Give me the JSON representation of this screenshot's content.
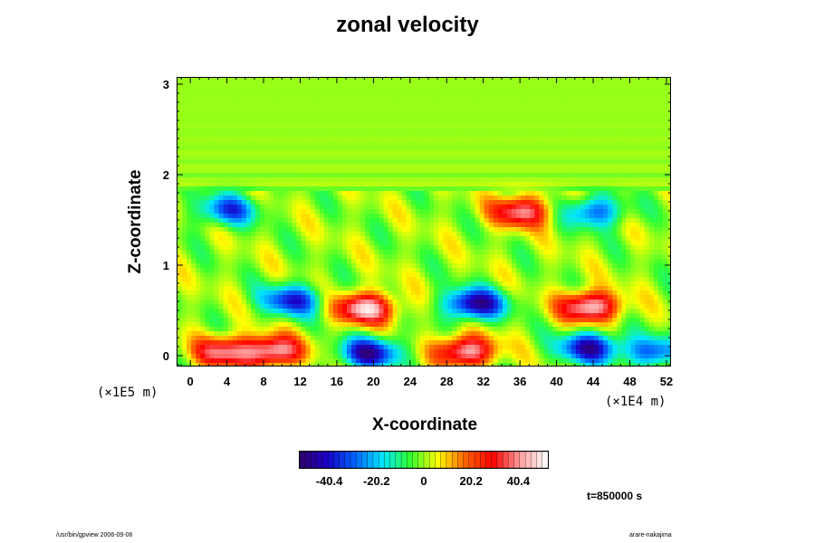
{
  "colors": {
    "background": "#ffffff",
    "colormap": [
      "#30006a",
      "#1a00c8",
      "#0064ff",
      "#00e6ff",
      "#30ff30",
      "#ffff00",
      "#ff6400",
      "#ff0000",
      "#ffa0a0",
      "#ffffff"
    ]
  },
  "chart_data": {
    "type": "heatmap",
    "title": "zonal velocity",
    "xlabel": "X-coordinate",
    "ylabel": "Z-coordinate",
    "x_scale_note": "(×1E4 m)",
    "y_scale_note": "(×1E5 m)",
    "xlim": [
      -1.5,
      52.5
    ],
    "ylim": [
      -0.12,
      3.08
    ],
    "x_ticks": [
      0,
      4,
      8,
      12,
      16,
      20,
      24,
      28,
      32,
      36,
      40,
      44,
      48,
      52
    ],
    "y_ticks": [
      0,
      1,
      2,
      3
    ],
    "colorbar": {
      "vmin": -53,
      "vmax": 53,
      "ticks": [
        -40.4,
        -20.2,
        0,
        20.2,
        40.4
      ],
      "tick_labels": [
        "-40.4",
        "-20.2",
        "0",
        "20.2",
        "40.4"
      ],
      "levels": 44
    },
    "features": [
      {
        "x": 3.5,
        "z": 0.05,
        "value": 38
      },
      {
        "x": 9.0,
        "z": 0.06,
        "value": 45
      },
      {
        "x": 19.5,
        "z": 0.04,
        "value": -45
      },
      {
        "x": 30.0,
        "z": 0.06,
        "value": 45
      },
      {
        "x": 43.5,
        "z": 0.1,
        "value": -45
      },
      {
        "x": 50.5,
        "z": 0.05,
        "value": -30
      },
      {
        "x": 19.0,
        "z": 0.53,
        "value": 48
      },
      {
        "x": 31.0,
        "z": 0.58,
        "value": -48
      },
      {
        "x": 43.5,
        "z": 0.55,
        "value": 48
      },
      {
        "x": 11.0,
        "z": 0.62,
        "value": -38
      },
      {
        "x": 4.0,
        "z": 1.62,
        "value": -32
      },
      {
        "x": 36.0,
        "z": 1.6,
        "value": 40
      },
      {
        "x": 44.0,
        "z": 1.6,
        "value": -30
      }
    ]
  },
  "time_label": "t=850000 s",
  "footer_left": "/usr/bin/gpview 2006-09-06",
  "footer_right": "arare-nakajima"
}
